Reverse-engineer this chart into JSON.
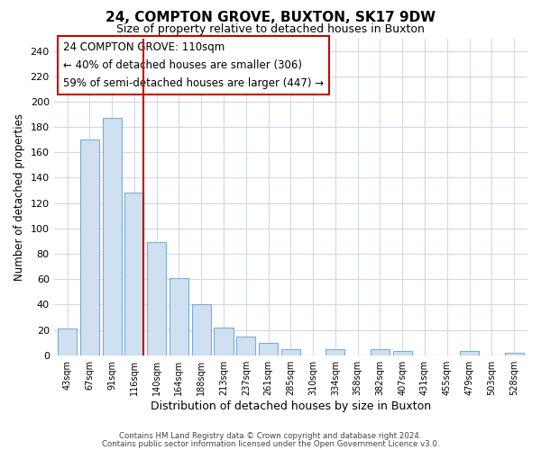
{
  "title": "24, COMPTON GROVE, BUXTON, SK17 9DW",
  "subtitle": "Size of property relative to detached houses in Buxton",
  "xlabel": "Distribution of detached houses by size in Buxton",
  "ylabel": "Number of detached properties",
  "bar_labels": [
    "43sqm",
    "67sqm",
    "91sqm",
    "116sqm",
    "140sqm",
    "164sqm",
    "188sqm",
    "213sqm",
    "237sqm",
    "261sqm",
    "285sqm",
    "310sqm",
    "334sqm",
    "358sqm",
    "382sqm",
    "407sqm",
    "431sqm",
    "455sqm",
    "479sqm",
    "503sqm",
    "528sqm"
  ],
  "bar_heights": [
    21,
    170,
    187,
    128,
    89,
    61,
    40,
    22,
    15,
    10,
    5,
    0,
    5,
    0,
    5,
    3,
    0,
    0,
    3,
    0,
    2
  ],
  "bar_color": "#cfe0f0",
  "bar_edge_color": "#7aadd4",
  "vline_color": "#cc0000",
  "ylim": [
    0,
    250
  ],
  "yticks": [
    0,
    20,
    40,
    60,
    80,
    100,
    120,
    140,
    160,
    180,
    200,
    220,
    240
  ],
  "annotation_title": "24 COMPTON GROVE: 110sqm",
  "annotation_line1": "← 40% of detached houses are smaller (306)",
  "annotation_line2": "59% of semi-detached houses are larger (447) →",
  "footer_line1": "Contains HM Land Registry data © Crown copyright and database right 2024.",
  "footer_line2": "Contains public sector information licensed under the Open Government Licence v3.0.",
  "background_color": "#ffffff",
  "grid_color": "#d0d8e8"
}
